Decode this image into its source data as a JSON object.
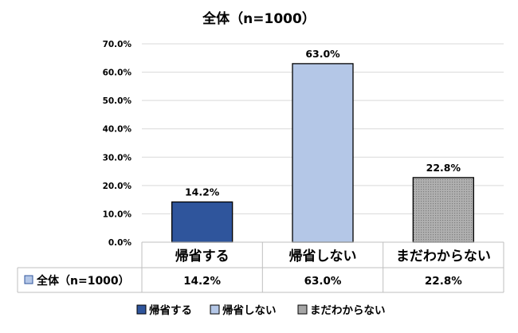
{
  "chart_data": {
    "type": "bar",
    "title": "全体（n=1000）",
    "categories": [
      "帰省する",
      "帰省しない",
      "まだわからない"
    ],
    "series": [
      {
        "name": "全体（n=1000）",
        "values": [
          14.2,
          63.0,
          22.8
        ]
      }
    ],
    "value_labels": [
      "14.2%",
      "63.0%",
      "22.8%"
    ],
    "y_ticks": [
      "0.0%",
      "10.0%",
      "20.0%",
      "30.0%",
      "40.0%",
      "50.0%",
      "60.0%",
      "70.0%"
    ],
    "ylim": [
      0,
      70
    ],
    "grid": true,
    "legend_placement": "bottom",
    "data_table": true,
    "colors": [
      "#2f559c",
      "#b4c7e7",
      "#a6a6a6"
    ]
  }
}
